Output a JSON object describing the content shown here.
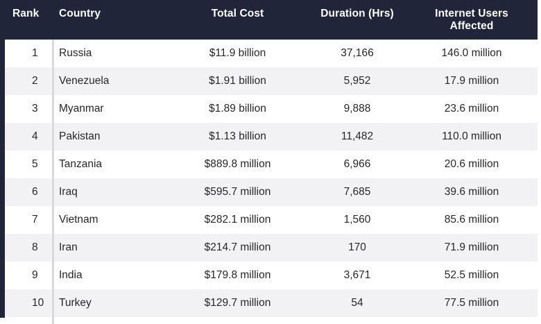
{
  "chart_data": {
    "type": "table",
    "title": "",
    "columns": [
      "Rank",
      "Country",
      "Total Cost",
      "Duration (Hrs)",
      "Internet Users Affected"
    ],
    "rows": [
      [
        "1",
        "Russia",
        "$11.9 billion",
        "37,166",
        "146.0 million"
      ],
      [
        "2",
        "Venezuela",
        "$1.91 billion",
        "5,952",
        "17.9 million"
      ],
      [
        "3",
        "Myanmar",
        "$1.89 billion",
        "9,888",
        "23.6 million"
      ],
      [
        "4",
        "Pakistan",
        "$1.13 billion",
        "11,482",
        "110.0 million"
      ],
      [
        "5",
        "Tanzania",
        "$889.8 million",
        "6,966",
        "20.6 million"
      ],
      [
        "6",
        "Iraq",
        "$595.7 million",
        "7,685",
        "39.6 million"
      ],
      [
        "7",
        "Vietnam",
        "$282.1 million",
        "1,560",
        "85.6 million"
      ],
      [
        "8",
        "Iran",
        "$214.7 million",
        "170",
        "71.9 million"
      ],
      [
        "9",
        "India",
        "$179.8 million",
        "3,671",
        "52.5 million"
      ],
      [
        "10",
        "Turkey",
        "$129.7 million",
        "54",
        "77.5 million"
      ]
    ]
  },
  "colors": {
    "header_bg": "#212539",
    "header_text": "#ffffff",
    "row_alt_bg": "#f2f2f4",
    "body_text": "#26262b",
    "divider": "#d9d9db"
  }
}
